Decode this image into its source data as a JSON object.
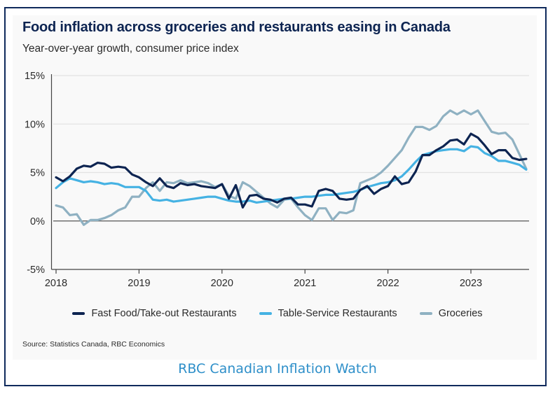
{
  "footer": "RBC Canadian Inflation Watch",
  "chart_data": {
    "type": "line",
    "title": "Food inflation across groceries and restaurants easing in Canada",
    "subtitle": "Year-over-year growth, consumer price index",
    "xlabel": "",
    "ylabel": "",
    "x_start": "2018-01",
    "x_frequency": "monthly",
    "x_tick_labels": [
      "2018",
      "2019",
      "2020",
      "2021",
      "2022",
      "2023"
    ],
    "y_tick_labels": [
      "15%",
      "10%",
      "5%",
      "0%",
      "-5%"
    ],
    "y_ticks": [
      15,
      10,
      5,
      0,
      -5
    ],
    "ylim": [
      -5,
      15
    ],
    "xlim_years": [
      2018,
      2023.8
    ],
    "grid": true,
    "legend_position": "bottom",
    "series": [
      {
        "name": "Fast Food/Take-out Restaurants",
        "color": "#0d2451",
        "values": [
          4.5,
          4.1,
          4.6,
          5.4,
          5.7,
          5.6,
          6.0,
          5.9,
          5.5,
          5.6,
          5.5,
          4.8,
          4.5,
          4.0,
          3.6,
          4.4,
          3.6,
          3.4,
          3.9,
          3.7,
          3.8,
          3.6,
          3.5,
          3.4,
          3.8,
          2.3,
          3.7,
          1.4,
          2.6,
          2.7,
          2.3,
          2.2,
          1.9,
          2.3,
          2.4,
          1.7,
          1.7,
          1.5,
          3.1,
          3.3,
          3.1,
          2.3,
          2.2,
          2.3,
          3.2,
          3.6,
          2.8,
          3.3,
          3.6,
          4.6,
          3.8,
          4.0,
          5.1,
          6.8,
          6.8,
          7.3,
          7.7,
          8.3,
          8.4,
          7.9,
          9.0,
          8.6,
          7.8,
          6.9,
          7.3,
          7.3,
          6.5,
          6.3,
          6.4
        ]
      },
      {
        "name": "Table-Service Restaurants",
        "color": "#45b2e3",
        "values": [
          3.4,
          4.0,
          4.4,
          4.2,
          4.0,
          4.1,
          4.0,
          3.8,
          3.9,
          3.8,
          3.5,
          3.5,
          3.5,
          3.1,
          2.2,
          2.1,
          2.2,
          2.0,
          2.1,
          2.2,
          2.3,
          2.4,
          2.5,
          2.5,
          2.3,
          2.1,
          2.0,
          2.0,
          2.1,
          1.9,
          2.0,
          2.1,
          2.2,
          2.3,
          2.3,
          2.4,
          2.5,
          2.5,
          2.6,
          2.7,
          2.7,
          2.8,
          2.9,
          3.0,
          3.2,
          3.5,
          3.7,
          3.9,
          4.0,
          4.2,
          4.6,
          5.3,
          6.1,
          6.8,
          7.0,
          7.2,
          7.3,
          7.4,
          7.4,
          7.2,
          7.7,
          7.6,
          7.0,
          6.7,
          6.2,
          6.2,
          6.0,
          5.8,
          5.3
        ]
      },
      {
        "name": "Groceries",
        "color": "#8fb1c2",
        "values": [
          1.6,
          1.4,
          0.6,
          0.7,
          -0.4,
          0.1,
          0.1,
          0.3,
          0.6,
          1.1,
          1.4,
          2.5,
          2.5,
          3.4,
          4.0,
          3.1,
          4.0,
          3.9,
          4.2,
          3.9,
          4.0,
          4.1,
          3.9,
          3.5,
          3.8,
          2.6,
          2.3,
          4.0,
          3.6,
          3.0,
          2.4,
          1.8,
          1.4,
          2.2,
          2.3,
          1.4,
          0.6,
          0.1,
          1.3,
          1.3,
          0.1,
          0.9,
          0.8,
          1.1,
          3.9,
          4.2,
          4.5,
          5.0,
          5.7,
          6.5,
          7.3,
          8.6,
          9.7,
          9.7,
          9.4,
          9.8,
          10.8,
          11.4,
          11.0,
          11.4,
          11.0,
          11.4,
          10.3,
          9.2,
          9.0,
          9.1,
          8.4,
          6.9,
          5.4
        ]
      }
    ],
    "source": "Source: Statistics Canada, RBC Economics"
  }
}
